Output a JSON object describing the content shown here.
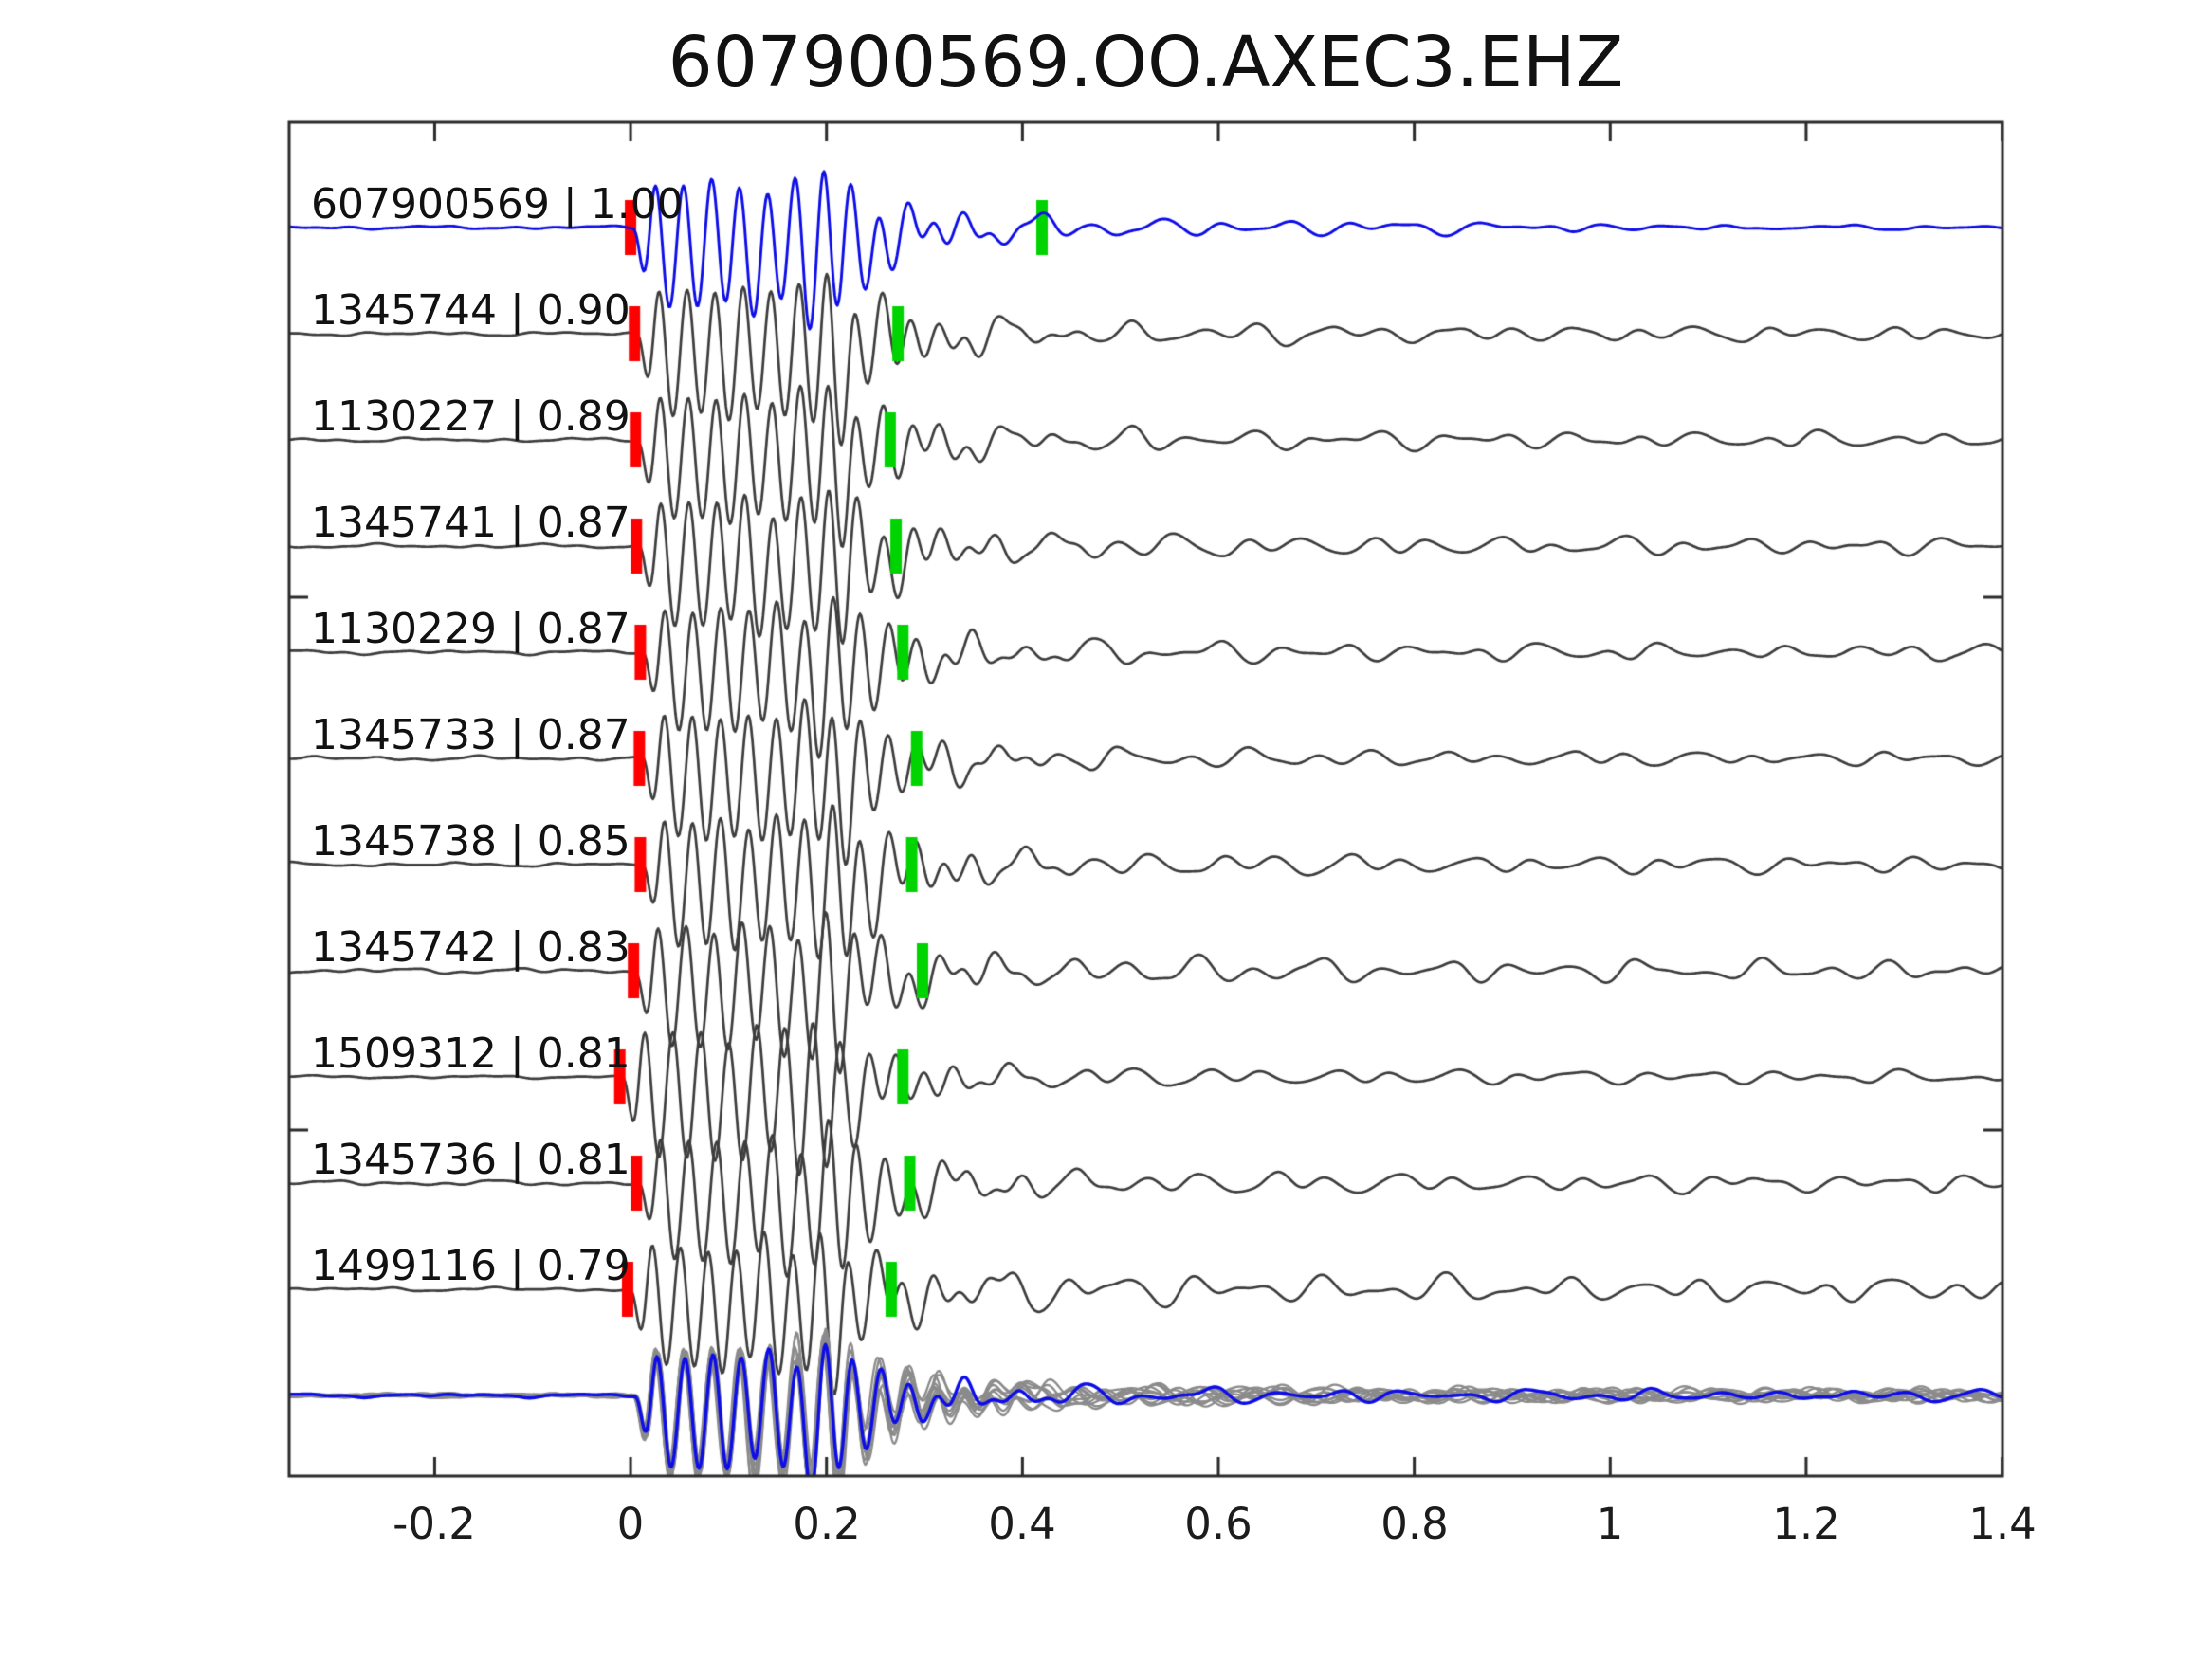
{
  "figure": {
    "title": "607900569.OO.AXEC3.EHZ"
  },
  "chart_data": {
    "type": "line",
    "title": "607900569.OO.AXEC3.EHZ",
    "subtitle": "",
    "xlabel": "",
    "ylabel": "",
    "xlim": [
      -0.3485,
      1.4004
    ],
    "xticks": [
      -0.2,
      0,
      0.2,
      0.4,
      0.6,
      0.8,
      1,
      1.2,
      1.4
    ],
    "xtick_labels": [
      "-0.2",
      "0",
      "0.2",
      "0.4",
      "0.6",
      "0.8",
      "1",
      "1.2",
      "1.4"
    ],
    "grid": false,
    "legend": "none",
    "colors": {
      "template_trace": "#0d0de8",
      "detection_trace": "#3d3d3d",
      "stack_member_trace": "#8b8b8b",
      "red_pick_marker": "#ff0000",
      "green_pick_marker": "#00d400",
      "axis": "#2b2b2b",
      "background": "#ffffff"
    },
    "traces": [
      {
        "id": "607900569",
        "corr": "1.00",
        "label": "607900569 | 1.00",
        "color_role": "template_trace",
        "red_pick_t": 0.0,
        "green_pick_t": 0.42
      },
      {
        "id": "1345744",
        "corr": "0.90",
        "label": "1345744 | 0.90",
        "color_role": "detection_trace",
        "red_pick_t": 0.004,
        "green_pick_t": 0.273
      },
      {
        "id": "1130227",
        "corr": "0.89",
        "label": "1130227 | 0.89",
        "color_role": "detection_trace",
        "red_pick_t": 0.005,
        "green_pick_t": 0.265
      },
      {
        "id": "1345741",
        "corr": "0.87",
        "label": "1345741 | 0.87",
        "color_role": "detection_trace",
        "red_pick_t": 0.006,
        "green_pick_t": 0.271
      },
      {
        "id": "1130229",
        "corr": "0.87",
        "label": "1130229 | 0.87",
        "color_role": "detection_trace",
        "red_pick_t": 0.01,
        "green_pick_t": 0.278
      },
      {
        "id": "1345733",
        "corr": "0.87",
        "label": "1345733 | 0.87",
        "color_role": "detection_trace",
        "red_pick_t": 0.009,
        "green_pick_t": 0.292
      },
      {
        "id": "1345738",
        "corr": "0.85",
        "label": "1345738 | 0.85",
        "color_role": "detection_trace",
        "red_pick_t": 0.01,
        "green_pick_t": 0.287
      },
      {
        "id": "1345742",
        "corr": "0.83",
        "label": "1345742 | 0.83",
        "color_role": "detection_trace",
        "red_pick_t": 0.003,
        "green_pick_t": 0.298
      },
      {
        "id": "1509312",
        "corr": "0.81",
        "label": "1509312 | 0.81",
        "color_role": "detection_trace",
        "red_pick_t": -0.011,
        "green_pick_t": 0.278
      },
      {
        "id": "1345736",
        "corr": "0.81",
        "label": "1345736 | 0.81",
        "color_role": "detection_trace",
        "red_pick_t": 0.006,
        "green_pick_t": 0.285
      },
      {
        "id": "1499116",
        "corr": "0.79",
        "label": "1499116 | 0.79",
        "color_role": "detection_trace",
        "red_pick_t": -0.003,
        "green_pick_t": 0.266
      }
    ],
    "stack_row": {
      "description": "all detection waveforms overlaid in gray with template waveform in blue",
      "member_count": 10,
      "has_template_overlay": true,
      "markers": "none"
    }
  }
}
